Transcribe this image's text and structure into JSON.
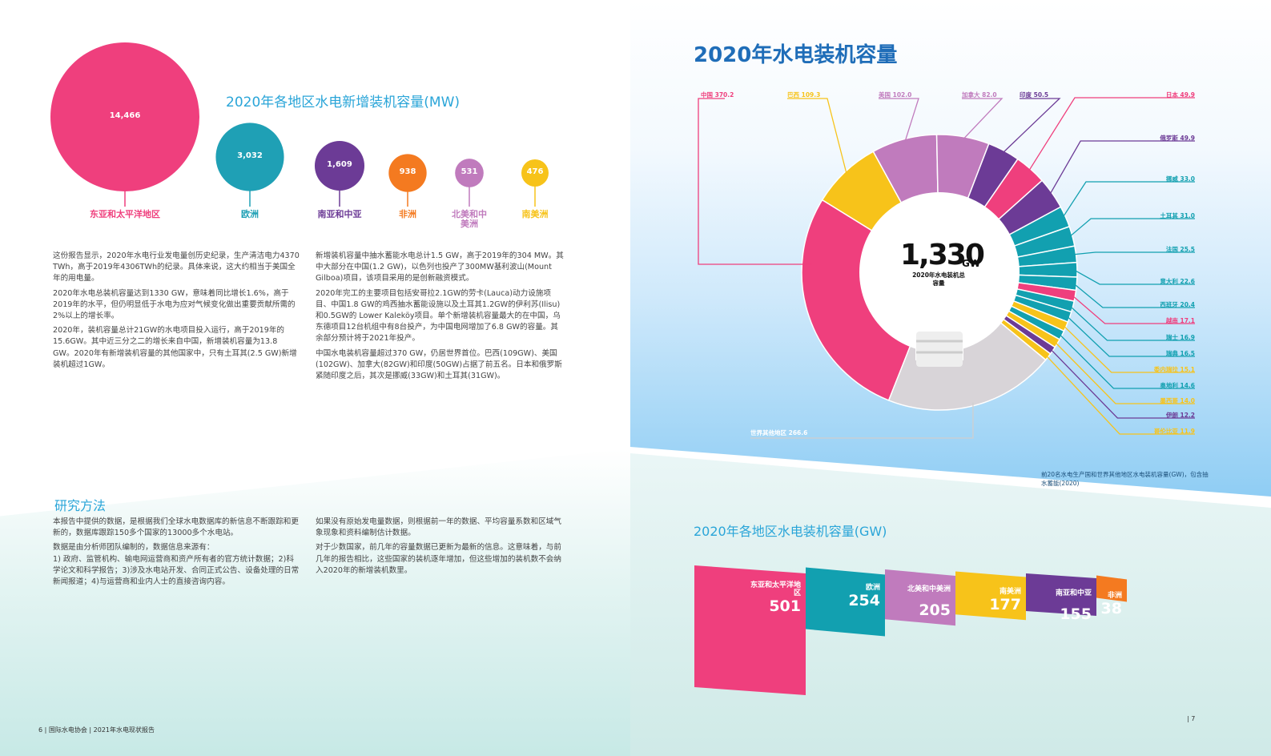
{
  "left": {
    "bubble_title": "2020年各地区水电新增装机容量(MW)",
    "bubbles": [
      {
        "value": "14,466",
        "label": "东亚和太平洋地区",
        "color": "#ef3f7d"
      },
      {
        "value": "3,032",
        "label": "欧洲",
        "color": "#1fa0b5"
      },
      {
        "value": "1,609",
        "label": "南亚和中亚",
        "color": "#6c3b96"
      },
      {
        "value": "938",
        "label": "非洲",
        "color": "#f47a20"
      },
      {
        "value": "531",
        "label": "北美和中美洲",
        "color": "#c07bbd"
      },
      {
        "value": "476",
        "label": "南美洲",
        "color": "#f7c31a"
      }
    ],
    "col1": [
      "这份报告显示，2020年水电行业发电量创历史纪录，生产清洁电力4370 TWh，高于2019年4306TWh的纪录。具体来说，这大约相当于美国全年的用电量。",
      "2020年水电总装机容量达到1330 GW，意味着同比增长1.6%，高于2019年的水平，但仍明显低于水电为应对气候变化做出重要贡献所需的2%以上的增长率。",
      "2020年，装机容量总计21GW的水电项目投入运行，高于2019年的15.6GW。其中近三分之二的增长来自中国，新增装机容量为13.8 GW。2020年有新增装机容量的其他国家中，只有土耳其(2.5 GW)新增装机超过1GW。"
    ],
    "col2": [
      "新增装机容量中抽水蓄能水电总计1.5 GW，高于2019年的304 MW。其中大部分在中国(1.2 GW)，以色列也投产了300MW基利波山(Mount Gilboa)项目，该项目采用的是创新融资模式。",
      "2020年完工的主要项目包括安哥拉2.1GW的劳卡(Lauca)动力设施项目、中国1.8 GW的鸡西抽水蓄能设施以及土耳其1.2GW的伊利苏(Ilisu)和0.5GW的 Lower Kaleköy项目。单个新增装机容量最大的在中国，乌东德项目12台机组中有8台投产，为中国电网增加了6.8 GW的容量。其余部分预计将于2021年投产。",
      "中国水电装机容量超过370 GW，仍居世界首位。巴西(109GW)、美国(102GW)、加拿大(82GW)和印度(50GW)占据了前五名。日本和俄罗斯紧随印度之后，其次是挪威(33GW)和土耳其(31GW)。"
    ],
    "method_title": "研究方法",
    "method_col1": [
      "本报告中提供的数据，是根据我们全球水电数据库的新信息不断跟踪和更新的，数据库跟踪150多个国家的13000多个水电站。",
      "数据是由分析师团队编制的，数据信息来源有：",
      "1) 政府、监管机构、输电网运营商和资产所有者的官方统计数据；2)科学论文和科学报告；3)涉及水电站开发、合同正式公告、设备处理的日常新闻报道；4)与运营商和业内人士的直接咨询内容。"
    ],
    "method_col2": [
      "如果没有原始发电量数据，则根据前一年的数据、平均容量系数和区域气象现象和资料编制估计数据。",
      "对于少数国家，前几年的容量数据已更新为最新的信息。这意味着，与前几年的报告相比，这些国家的装机逐年增加，但这些增加的装机数不会纳入2020年的新增装机数里。"
    ],
    "footer": "6  |   国际水电协会   |   2021年水电现状报告"
  },
  "right": {
    "title": "2020年水电装机容量",
    "center_value": "1,330",
    "center_unit": "GW",
    "center_label": "2020年水电装机总容量",
    "caption": "前20名水电生产国和世界其他地区水电装机容量(GW)，包含抽水蓄能(2020)",
    "band_title": "2020年各地区水电装机容量(GW)",
    "bands": [
      {
        "label": "东亚和太平洋地区",
        "value": "501",
        "color": "#ef3f7d"
      },
      {
        "label": "欧洲",
        "value": "254",
        "color": "#12a0b0"
      },
      {
        "label": "北美和中美洲",
        "value": "205",
        "color": "#c07bbd"
      },
      {
        "label": "南美洲",
        "value": "177",
        "color": "#f7c31a"
      },
      {
        "label": "南亚和中亚",
        "value": "155",
        "color": "#6c3b96"
      },
      {
        "label": "非洲",
        "value": "38",
        "color": "#f47a20"
      }
    ],
    "footer": "|   7"
  },
  "chart_data": {
    "type": "pie",
    "title": "2020年水电装机容量",
    "unit": "GW",
    "slices": [
      {
        "name": "中国",
        "value": 370.2,
        "label": "中国 370.2",
        "color": "#ef3f7d"
      },
      {
        "name": "巴西",
        "value": 109.3,
        "label": "巴西 109.3",
        "color": "#f7c31a"
      },
      {
        "name": "美国",
        "value": 102.0,
        "label": "美国 102.0",
        "color": "#c07bbd"
      },
      {
        "name": "加拿大",
        "value": 82.0,
        "label": "加拿大 82.0",
        "color": "#c07bbd"
      },
      {
        "name": "印度",
        "value": 50.5,
        "label": "印度 50.5",
        "color": "#6c3b96"
      },
      {
        "name": "日本",
        "value": 49.9,
        "label": "日本 49.9",
        "color": "#ef3f7d"
      },
      {
        "name": "俄罗斯",
        "value": 49.9,
        "label": "俄罗斯 49.9",
        "color": "#6c3b96"
      },
      {
        "name": "挪威",
        "value": 33.0,
        "label": "挪威 33.0",
        "color": "#12a0b0"
      },
      {
        "name": "土耳其",
        "value": 31.0,
        "label": "土耳其 31.0",
        "color": "#12a0b0"
      },
      {
        "name": "法国",
        "value": 25.5,
        "label": "法国 25.5",
        "color": "#12a0b0"
      },
      {
        "name": "意大利",
        "value": 22.6,
        "label": "意大利 22.6",
        "color": "#12a0b0"
      },
      {
        "name": "西班牙",
        "value": 20.4,
        "label": "西班牙 20.4",
        "color": "#12a0b0"
      },
      {
        "name": "越南",
        "value": 17.1,
        "label": "越南 17.1",
        "color": "#ef3f7d"
      },
      {
        "name": "瑞士",
        "value": 16.9,
        "label": "瑞士 16.9",
        "color": "#12a0b0"
      },
      {
        "name": "瑞典",
        "value": 16.5,
        "label": "瑞典 16.5",
        "color": "#12a0b0"
      },
      {
        "name": "委内瑞拉",
        "value": 15.1,
        "label": "委内瑞拉 15.1",
        "color": "#f7c31a"
      },
      {
        "name": "奥地利",
        "value": 14.6,
        "label": "奥地利 14.6",
        "color": "#12a0b0"
      },
      {
        "name": "墨西哥",
        "value": 14.0,
        "label": "墨西哥 14.0",
        "color": "#f7c31a"
      },
      {
        "name": "伊朗",
        "value": 12.2,
        "label": "伊朗 12.2",
        "color": "#6c3b96"
      },
      {
        "name": "哥伦比亚",
        "value": 11.9,
        "label": "哥伦比亚 11.9",
        "color": "#f7c31a"
      },
      {
        "name": "世界其他地区",
        "value": 266.6,
        "label": "世界其他地区 266.6",
        "color": "#d8d4d8"
      }
    ]
  }
}
